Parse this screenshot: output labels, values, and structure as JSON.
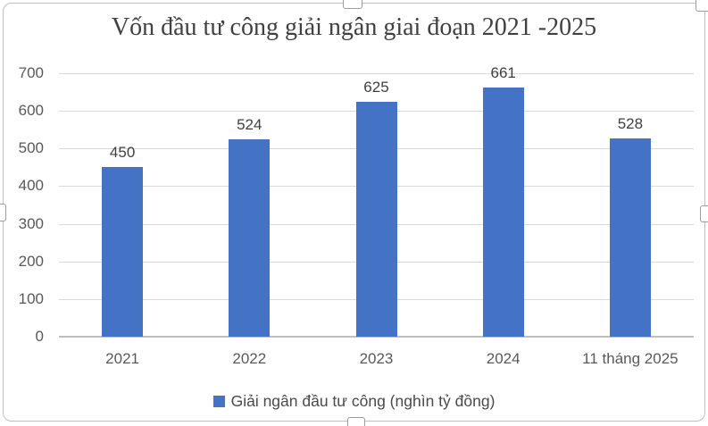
{
  "chart_data": {
    "type": "bar",
    "title": "Vốn đầu tư công giải ngân giai đoạn 2021 -2025",
    "categories": [
      "2021",
      "2022",
      "2023",
      "2024",
      "11 tháng 2025"
    ],
    "series": [
      {
        "name": "Giải ngân đầu tư công (nghìn tỷ đồng)",
        "values": [
          450,
          524,
          625,
          661,
          528
        ]
      }
    ],
    "data_labels": [
      450,
      524,
      625,
      661,
      528
    ],
    "ylim": [
      0,
      700
    ],
    "yticks": [
      0,
      100,
      200,
      300,
      400,
      500,
      600,
      700
    ],
    "grid": true,
    "legend_position": "bottom",
    "colors": {
      "bar": "#4472C4",
      "title": "#404040",
      "value_label": "#404040",
      "axis_label": "#595959",
      "gridline": "#D9D9D9",
      "axis_line": "#BFBFBF",
      "legend_text": "#4a4a4a"
    }
  },
  "icons": {
    "legend_swatch": "blue-square-marker"
  }
}
